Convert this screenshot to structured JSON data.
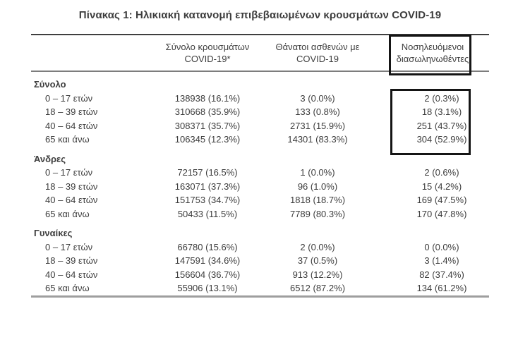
{
  "title": "Πίνακας 1: Ηλικιακή κατανομή επιβεβαιωμένων κρουσμάτων COVID-19",
  "table": {
    "headers": {
      "cases": [
        "Σύνολο κρουσμάτων",
        "COVID-19*"
      ],
      "deaths": [
        "Θάνατοι ασθενών με",
        "COVID-19"
      ],
      "intubated": [
        "Νοσηλευόμενοι",
        "διασωληνωθέντες"
      ]
    },
    "sections": [
      {
        "label": "Σύνολο",
        "rows": [
          {
            "age": "0 – 17 ετών",
            "cases": "138938 (16.1%)",
            "deaths": "3 (0.0%)",
            "intubated": "2 (0.3%)"
          },
          {
            "age": "18 – 39 ετών",
            "cases": "310668 (35.9%)",
            "deaths": "133 (0.8%)",
            "intubated": "18 (3.1%)"
          },
          {
            "age": "40 – 64 ετών",
            "cases": "308371 (35.7%)",
            "deaths": "2731 (15.9%)",
            "intubated": "251 (43.7%)"
          },
          {
            "age": "65 και άνω",
            "cases": "106345 (12.3%)",
            "deaths": "14301 (83.3%)",
            "intubated": "304 (52.9%)"
          }
        ]
      },
      {
        "label": "Άνδρες",
        "rows": [
          {
            "age": "0 – 17 ετών",
            "cases": "72157 (16.5%)",
            "deaths": "1 (0.0%)",
            "intubated": "2 (0.6%)"
          },
          {
            "age": "18 – 39 ετών",
            "cases": "163071 (37.3%)",
            "deaths": "96 (1.0%)",
            "intubated": "15 (4.2%)"
          },
          {
            "age": "40 – 64 ετών",
            "cases": "151753 (34.7%)",
            "deaths": "1818 (18.7%)",
            "intubated": "169 (47.5%)"
          },
          {
            "age": "65 και άνω",
            "cases": "50433 (11.5%)",
            "deaths": "7789 (80.3%)",
            "intubated": "170 (47.8%)"
          }
        ]
      },
      {
        "label": "Γυναίκες",
        "rows": [
          {
            "age": "0 – 17 ετών",
            "cases": "66780 (15.6%)",
            "deaths": "2 (0.0%)",
            "intubated": "0 (0.0%)"
          },
          {
            "age": "18 – 39 ετών",
            "cases": "147591 (34.6%)",
            "deaths": "37 (0.5%)",
            "intubated": "3 (1.4%)"
          },
          {
            "age": "40 – 64 ετών",
            "cases": "156604 (36.7%)",
            "deaths": "913 (12.2%)",
            "intubated": "82 (37.4%)"
          },
          {
            "age": "65 και άνω",
            "cases": "55906 (13.1%)",
            "deaths": "6512 (87.2%)",
            "intubated": "134 (61.2%)"
          }
        ]
      }
    ]
  },
  "colors": {
    "text": "#3d3d3d",
    "line_top": "#3f3f3f",
    "line_mid": "#7d7d7d",
    "line_bottom": "#9e9e9e",
    "highlight_box": "#151515"
  }
}
